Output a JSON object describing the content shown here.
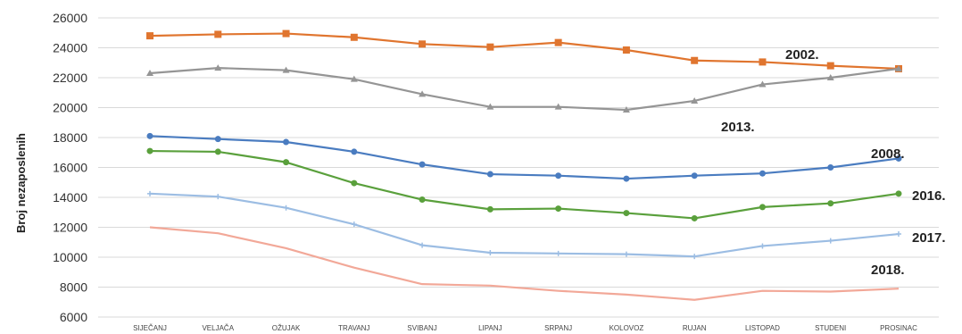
{
  "chart_data": {
    "type": "line",
    "ylabel": "Broj nezaposlenih",
    "xlabel": "",
    "title": "",
    "ylim": [
      6000,
      26000
    ],
    "yticks": [
      6000,
      8000,
      10000,
      12000,
      14000,
      16000,
      18000,
      20000,
      22000,
      24000,
      26000
    ],
    "grid": true,
    "legend": "inline labels at right end of lines",
    "categories": [
      "SIJEČANJ",
      "VELJAČA",
      "OŽUJAK",
      "TRAVANJ",
      "SVIBANJ",
      "LIPANJ",
      "SRPANJ",
      "KOLOVOZ",
      "RUJAN",
      "LISTOPAD",
      "STUDENI",
      "PROSINAC"
    ],
    "series": [
      {
        "name": "2002.",
        "color": "#e0752f",
        "marker": "square",
        "values": [
          24800,
          24900,
          24950,
          24700,
          24250,
          24050,
          24350,
          23850,
          23150,
          23050,
          22800,
          22600
        ]
      },
      {
        "name": "2013.",
        "color": "#959595",
        "marker": "triangle",
        "values": [
          22300,
          22650,
          22500,
          21900,
          20900,
          20050,
          20050,
          19850,
          20450,
          21550,
          22000,
          22600
        ]
      },
      {
        "name": "2008.",
        "color": "#4a7cc0",
        "marker": "circle",
        "values": [
          18100,
          17900,
          17700,
          17050,
          16200,
          15550,
          15450,
          15250,
          15450,
          15600,
          16000,
          16600
        ]
      },
      {
        "name": "2016.",
        "color": "#5aa03c",
        "marker": "circle",
        "values": [
          17100,
          17050,
          16350,
          14950,
          13850,
          13200,
          13250,
          12950,
          12600,
          13350,
          13600,
          14250
        ]
      },
      {
        "name": "2017.",
        "color": "#9cbde3",
        "marker": "cross",
        "values": [
          14250,
          14050,
          13300,
          12200,
          10800,
          10300,
          10250,
          10200,
          10050,
          10750,
          11100,
          11550
        ]
      },
      {
        "name": "2018.",
        "color": "#f2a898",
        "marker": "none",
        "values": [
          12000,
          11600,
          10600,
          9300,
          8200,
          8100,
          7750,
          7500,
          7150,
          7750,
          7700,
          7900
        ]
      }
    ]
  }
}
